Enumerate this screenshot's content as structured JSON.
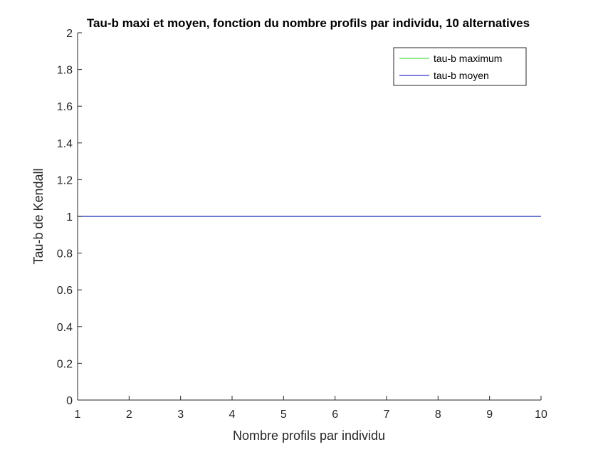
{
  "chart_data": {
    "type": "line",
    "title": "Tau-b maxi et moyen, fonction du nombre profils par individu, 10 alternatives",
    "xlabel": "Nombre profils par individu",
    "ylabel": "Tau-b de Kendall",
    "xlim": [
      1,
      10
    ],
    "ylim": [
      0,
      2
    ],
    "x_ticks": [
      "1",
      "2",
      "3",
      "4",
      "5",
      "6",
      "7",
      "8",
      "9",
      "10"
    ],
    "y_ticks": [
      "0",
      "0.2",
      "0.4",
      "0.6",
      "0.8",
      "1",
      "1.2",
      "1.4",
      "1.6",
      "1.8",
      "2"
    ],
    "grid": false,
    "legend_position": "top-right",
    "x": [
      1,
      2,
      3,
      4,
      5,
      6,
      7,
      8,
      9,
      10
    ],
    "series": [
      {
        "name": "tau-b maximum",
        "color": "#4fdc4f",
        "values": [
          1,
          1,
          1,
          1,
          1,
          1,
          1,
          1,
          1,
          1
        ]
      },
      {
        "name": "tau-b moyen",
        "color": "#3333cc",
        "values": [
          1,
          1,
          1,
          1,
          1,
          1,
          1,
          1,
          1,
          1
        ]
      }
    ]
  }
}
